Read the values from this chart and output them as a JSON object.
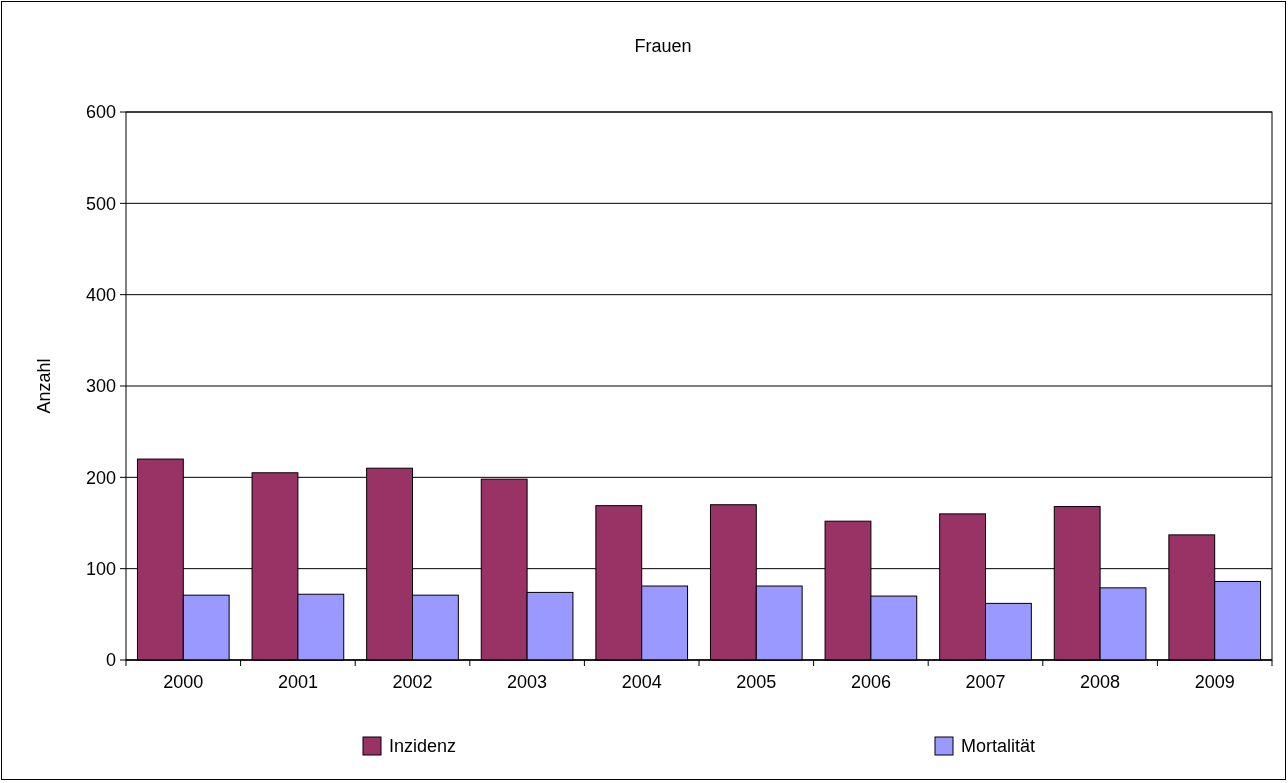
{
  "chart_data": {
    "type": "bar",
    "title": "Frauen",
    "ylabel": "Anzahl",
    "categories": [
      "2000",
      "2001",
      "2002",
      "2003",
      "2004",
      "2005",
      "2006",
      "2007",
      "2008",
      "2009"
    ],
    "series": [
      {
        "name": "Inzidenz",
        "color": "#993366",
        "values": [
          220,
          205,
          210,
          198,
          169,
          170,
          152,
          160,
          168,
          137
        ]
      },
      {
        "name": "Mortalität",
        "color": "#9999ff",
        "values": [
          71,
          72,
          71,
          74,
          81,
          81,
          70,
          62,
          79,
          86
        ]
      }
    ],
    "ylim": [
      0,
      600
    ],
    "yticks": [
      0,
      100,
      200,
      300,
      400,
      500,
      600
    ],
    "grid": "y",
    "legend": "bottom"
  }
}
